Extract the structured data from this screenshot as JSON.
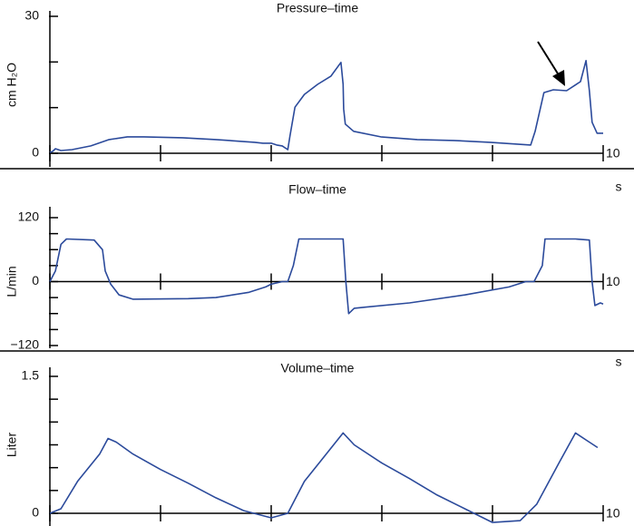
{
  "chart_data": [
    {
      "type": "line",
      "title": "Pressure–time",
      "y_label": "cm H₂O",
      "x_label": "s",
      "color": "#2b4a9b",
      "x": [
        0,
        0.05,
        0.1,
        0.2,
        0.4,
        0.74,
        1.07,
        1.4,
        1.7,
        2.4,
        3.0,
        3.7,
        3.85,
        4.0,
        4.1,
        4.2,
        4.3,
        4.34,
        4.43,
        4.6,
        4.84,
        5.08,
        5.26,
        5.3,
        5.31,
        5.34,
        5.49,
        5.98,
        6.64,
        7.3,
        7.95,
        8.69,
        8.77,
        8.93,
        9.1,
        9.34,
        9.59,
        9.69,
        9.75,
        9.8,
        9.89,
        10.0
      ],
      "values": [
        0.2,
        0.4,
        1.0,
        0.6,
        0.8,
        1.6,
        3.0,
        3.6,
        3.6,
        3.4,
        3.0,
        2.4,
        2.2,
        2.2,
        1.8,
        1.6,
        0.8,
        3.8,
        10.1,
        12.9,
        15.1,
        16.9,
        19.9,
        15.1,
        9.7,
        6.4,
        4.8,
        3.6,
        3.0,
        2.8,
        2.4,
        1.8,
        4.8,
        13.3,
        13.9,
        13.7,
        15.7,
        20.3,
        13.7,
        6.8,
        4.4,
        4.4
      ],
      "xlim": [
        0,
        10
      ],
      "xticks": [
        {
          "value": 0,
          "label": null
        },
        {
          "value": 2,
          "label": null
        },
        {
          "value": 4,
          "label": null
        },
        {
          "value": 6,
          "label": null
        },
        {
          "value": 8,
          "label": null
        },
        10
      ],
      "ylim": [
        0,
        30
      ],
      "yticks": [
        0,
        {
          "value": 10,
          "label": null
        },
        {
          "value": 20,
          "label": null
        },
        30
      ]
    },
    {
      "type": "line",
      "title": "Flow–time",
      "y_label": "L/min",
      "x_label": "s",
      "color": "#2b4a9b",
      "x": [
        0,
        0.1,
        0.2,
        0.3,
        0.8,
        0.95,
        1.0,
        1.1,
        1.25,
        1.5,
        2.5,
        3.0,
        3.6,
        3.9,
        4.0,
        4.2,
        4.3,
        4.4,
        4.5,
        5.3,
        5.35,
        5.4,
        5.5,
        5.7,
        6.5,
        7.5,
        8.3,
        8.6,
        8.75,
        8.9,
        8.95,
        9.5,
        9.75,
        9.8,
        9.85,
        9.95,
        10.0
      ],
      "values": [
        0,
        20,
        70,
        80,
        78,
        60,
        20,
        -5,
        -25,
        -33,
        -32,
        -30,
        -20,
        -10,
        -5,
        0,
        0,
        30,
        80,
        80,
        0,
        -60,
        -50,
        -48,
        -40,
        -25,
        -10,
        0,
        0,
        30,
        80,
        80,
        78,
        0,
        -45,
        -40,
        -42
      ],
      "xlim": [
        0,
        10
      ],
      "xticks": [
        {
          "value": 0,
          "label": null
        },
        {
          "value": 2,
          "label": null
        },
        {
          "value": 4,
          "label": null
        },
        {
          "value": 6,
          "label": null
        },
        {
          "value": 8,
          "label": null
        },
        10
      ],
      "ylim": [
        -120,
        120
      ],
      "yticks": [
        {
          "value": -120,
          "label": "−120"
        },
        {
          "value": -90,
          "label": null
        },
        {
          "value": -60,
          "label": null
        },
        {
          "value": -30,
          "label": null
        },
        0,
        {
          "value": 30,
          "label": null
        },
        {
          "value": 60,
          "label": null
        },
        {
          "value": 90,
          "label": null
        },
        120
      ]
    },
    {
      "type": "line",
      "title": "Volume–time",
      "y_label": "Liter",
      "color": "#2b4a9b",
      "x": [
        0,
        0.2,
        0.5,
        0.9,
        1.05,
        1.2,
        1.5,
        2.0,
        2.5,
        3.0,
        3.5,
        4.0,
        4.3,
        4.6,
        5.3,
        5.5,
        6.0,
        6.5,
        7.0,
        7.5,
        8.0,
        8.5,
        8.8,
        9.2,
        9.5,
        9.7,
        9.9
      ],
      "values": [
        0,
        0.05,
        0.35,
        0.65,
        0.82,
        0.78,
        0.65,
        0.48,
        0.33,
        0.17,
        0.03,
        -0.05,
        0,
        0.35,
        0.88,
        0.75,
        0.55,
        0.38,
        0.2,
        0.05,
        -0.1,
        -0.08,
        0.1,
        0.55,
        0.88,
        0.8,
        0.72
      ],
      "xlim": [
        0,
        10
      ],
      "xticks": [
        {
          "value": 0,
          "label": null
        },
        {
          "value": 2,
          "label": null
        },
        {
          "value": 4,
          "label": null
        },
        {
          "value": 6,
          "label": null
        },
        {
          "value": 8,
          "label": null
        },
        10
      ],
      "ylim": [
        0,
        1.5
      ],
      "yticks": [
        0,
        {
          "value": 0.25,
          "label": null
        },
        {
          "value": 0.5,
          "label": null
        },
        {
          "value": 0.75,
          "label": null
        },
        {
          "value": 1.0,
          "label": null
        },
        {
          "value": 1.25,
          "label": null
        },
        1.5
      ]
    }
  ]
}
